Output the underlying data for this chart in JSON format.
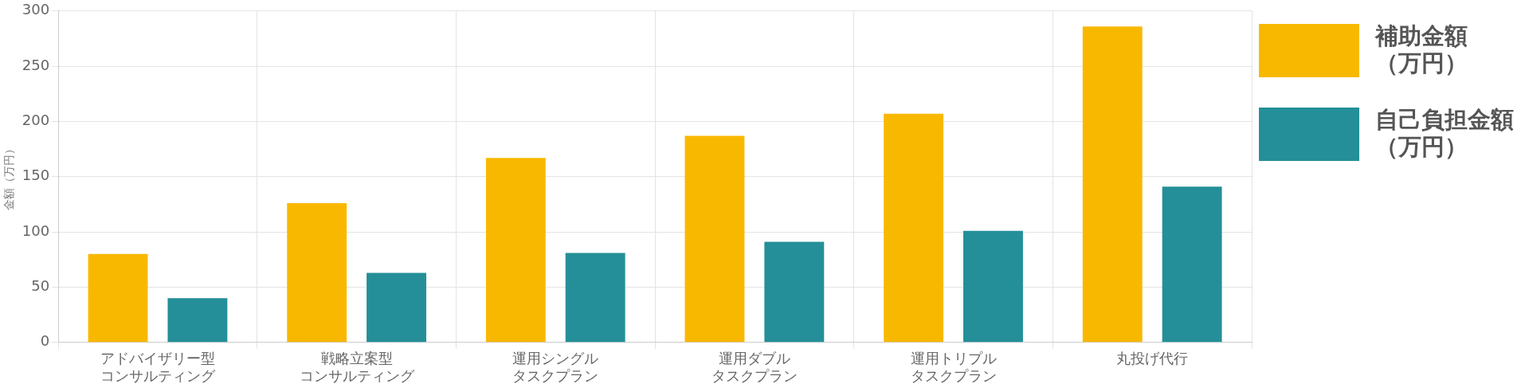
{
  "chart_data": {
    "type": "bar",
    "ylabel": "金額（万円）",
    "categories": [
      "アドバイザリー型コンサルティング",
      "戦略立案型コンサルティング",
      "運用シングルタスクプラン",
      "運用ダブルタスクプラン",
      "運用トリプルタスクプラン",
      "丸投げ代行"
    ],
    "series": [
      {
        "name": "補助金額（万円）",
        "color": "#f9b800",
        "values": [
          80,
          126,
          167,
          187,
          207,
          286
        ]
      },
      {
        "name": "自己負担金額（万円）",
        "color": "#248f98",
        "values": [
          40,
          63,
          81,
          91,
          101,
          141
        ]
      }
    ],
    "ylim": [
      0,
      300
    ],
    "yticks": [
      0,
      50,
      100,
      150,
      200,
      250,
      300
    ],
    "grid": true,
    "legend": "right"
  }
}
